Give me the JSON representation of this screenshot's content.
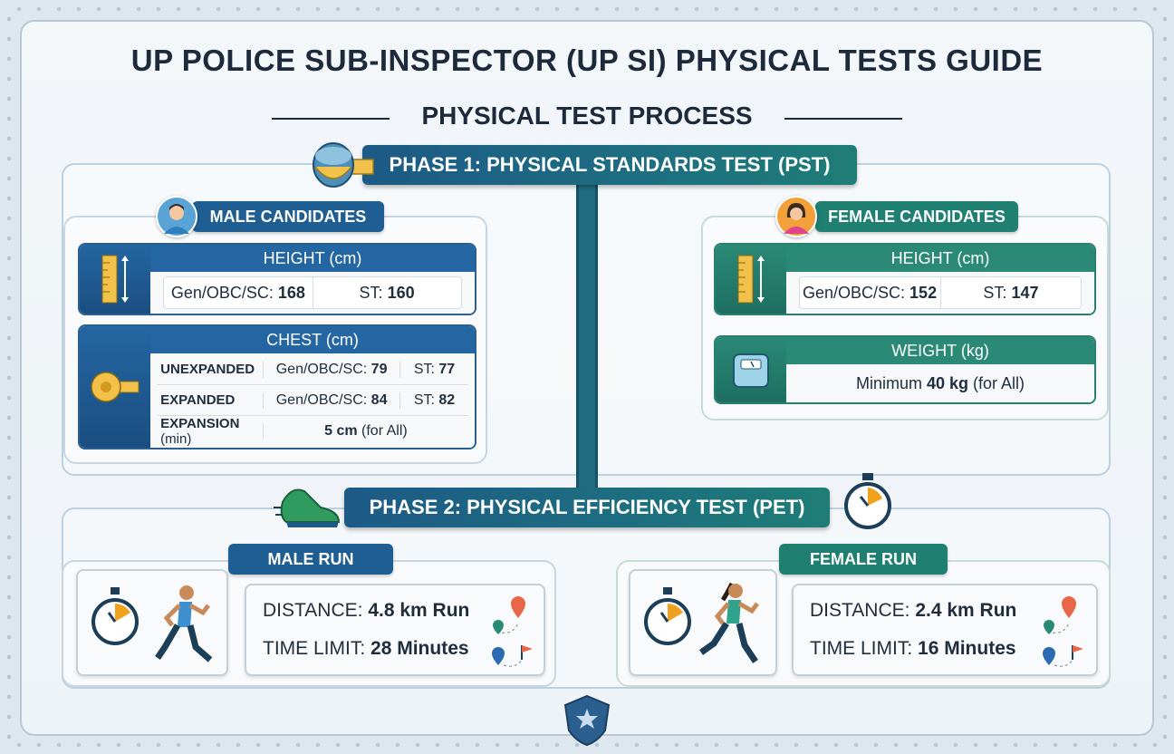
{
  "title": "UP POLICE SUB-INSPECTOR (UP SI) PHYSICAL TESTS GUIDE",
  "subtitle": "PHYSICAL TEST PROCESS",
  "phase1": {
    "label": "PHASE 1: PHYSICAL STANDARDS TEST (PST)",
    "male": {
      "tag": "MALE CANDIDATES",
      "height": {
        "title": "HEIGHT (cm)",
        "gen_label": "Gen/OBC/SC:",
        "gen_value": "168",
        "st_label": "ST:",
        "st_value": "160"
      },
      "chest": {
        "title": "CHEST (cm)",
        "unexpanded": {
          "label": "UNEXPANDED",
          "gen_label": "Gen/OBC/SC:",
          "gen_value": "79",
          "st_label": "ST:",
          "st_value": "77"
        },
        "expanded": {
          "label": "EXPANDED",
          "gen_label": "Gen/OBC/SC:",
          "gen_value": "84",
          "st_label": "ST:",
          "st_value": "82"
        },
        "expansion": {
          "label": "EXPANSION",
          "label_suffix": "(min)",
          "value": "5 cm",
          "value_suffix": "(for All)"
        }
      }
    },
    "female": {
      "tag": "FEMALE CANDIDATES",
      "height": {
        "title": "HEIGHT (cm)",
        "gen_label": "Gen/OBC/SC:",
        "gen_value": "152",
        "st_label": "ST:",
        "st_value": "147"
      },
      "weight": {
        "title": "WEIGHT (kg)",
        "prefix": "Minimum",
        "value": "40 kg",
        "suffix": "(for All)"
      }
    }
  },
  "phase2": {
    "label": "PHASE 2: PHYSICAL EFFICIENCY TEST (PET)",
    "male": {
      "tag": "MALE RUN",
      "distance_label": "DISTANCE:",
      "distance_value": "4.8 km Run",
      "time_label": "TIME LIMIT:",
      "time_value": "28 Minutes"
    },
    "female": {
      "tag": "FEMALE RUN",
      "distance_label": "DISTANCE:",
      "distance_value": "2.4 km Run",
      "time_label": "TIME LIMIT:",
      "time_value": "16 Minutes"
    }
  },
  "colors": {
    "navy": "#1e5e92",
    "teal": "#1f7f70",
    "orange": "#f0a21f"
  },
  "icons": [
    "measuring-tape-icon",
    "ruler-icon",
    "scale-icon",
    "shoe-icon",
    "stopwatch-icon",
    "runner-icon",
    "map-pin-icon",
    "police-badge-icon"
  ]
}
